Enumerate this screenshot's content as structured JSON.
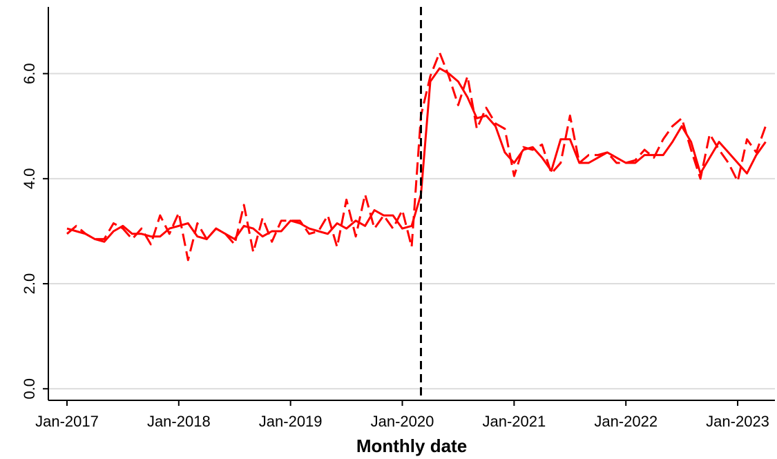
{
  "chart_data": {
    "type": "line",
    "x": [
      "Jan-2017",
      "Feb-2017",
      "Mar-2017",
      "Apr-2017",
      "May-2017",
      "Jun-2017",
      "Jul-2017",
      "Aug-2017",
      "Sep-2017",
      "Oct-2017",
      "Nov-2017",
      "Dec-2017",
      "Jan-2018",
      "Feb-2018",
      "Mar-2018",
      "Apr-2018",
      "May-2018",
      "Jun-2018",
      "Jul-2018",
      "Aug-2018",
      "Sep-2018",
      "Oct-2018",
      "Nov-2018",
      "Dec-2018",
      "Jan-2019",
      "Feb-2019",
      "Mar-2019",
      "Apr-2019",
      "May-2019",
      "Jun-2019",
      "Jul-2019",
      "Aug-2019",
      "Sep-2019",
      "Oct-2019",
      "Nov-2019",
      "Dec-2019",
      "Jan-2020",
      "Feb-2020",
      "Mar-2020",
      "Apr-2020",
      "May-2020",
      "Jun-2020",
      "Jul-2020",
      "Aug-2020",
      "Sep-2020",
      "Oct-2020",
      "Nov-2020",
      "Dec-2020",
      "Jan-2021",
      "Feb-2021",
      "Mar-2021",
      "Apr-2021",
      "May-2021",
      "Jun-2021",
      "Jul-2021",
      "Aug-2021",
      "Sep-2021",
      "Oct-2021",
      "Nov-2021",
      "Dec-2021",
      "Jan-2022",
      "Feb-2022",
      "Mar-2022",
      "Apr-2022",
      "May-2022",
      "Jun-2022",
      "Jul-2022",
      "Aug-2022",
      "Sep-2022",
      "Oct-2022",
      "Nov-2022",
      "Dec-2022",
      "Jan-2023",
      "Feb-2023",
      "Mar-2023",
      "Apr-2023"
    ],
    "series": [
      {
        "color": "#ff0000",
        "dash": false,
        "values": [
          3.05,
          3.0,
          2.95,
          2.85,
          2.8,
          3.0,
          3.1,
          2.95,
          2.95,
          2.9,
          2.9,
          3.05,
          3.1,
          3.15,
          2.9,
          2.85,
          3.05,
          2.95,
          2.85,
          3.1,
          3.05,
          2.9,
          3.0,
          3.0,
          3.2,
          3.15,
          3.05,
          3.0,
          2.95,
          3.15,
          3.05,
          3.2,
          3.1,
          3.4,
          3.3,
          3.3,
          3.05,
          3.1,
          3.7,
          5.85,
          6.1,
          6.0,
          5.85,
          5.55,
          5.15,
          5.2,
          5.0,
          4.5,
          4.3,
          4.55,
          4.6,
          4.4,
          4.15,
          4.75,
          4.75,
          4.3,
          4.3,
          4.4,
          4.5,
          4.4,
          4.3,
          4.3,
          4.45,
          4.45,
          4.45,
          4.7,
          5.0,
          4.7,
          4.1,
          4.4,
          4.7,
          4.5,
          4.3,
          4.1,
          4.45,
          4.7
        ]
      },
      {
        "color": "#ff0000",
        "dash": true,
        "values": [
          2.95,
          3.1,
          2.95,
          2.85,
          2.85,
          3.15,
          3.05,
          2.85,
          3.05,
          2.75,
          3.3,
          2.95,
          3.35,
          2.45,
          3.15,
          2.85,
          3.05,
          2.95,
          2.75,
          3.5,
          2.6,
          3.25,
          2.8,
          3.2,
          3.2,
          3.2,
          2.95,
          3.0,
          3.3,
          2.7,
          3.6,
          2.9,
          3.7,
          3.05,
          3.3,
          3.05,
          3.4,
          2.7,
          5.2,
          5.95,
          6.4,
          5.95,
          5.4,
          5.95,
          4.95,
          5.35,
          5.05,
          4.95,
          4.05,
          4.6,
          4.55,
          4.65,
          4.1,
          4.3,
          5.2,
          4.3,
          4.45,
          4.45,
          4.5,
          4.3,
          4.3,
          4.35,
          4.55,
          4.4,
          4.75,
          5.0,
          5.15,
          4.55,
          4.0,
          4.85,
          4.55,
          4.3,
          3.95,
          4.75,
          4.5,
          5.0
        ]
      }
    ],
    "vline": "Mar-2020",
    "xlabel": "Monthly date",
    "xlim": [
      "Nov-2016",
      "May-2023"
    ],
    "xticks": [
      "Jan-2017",
      "Jan-2018",
      "Jan-2019",
      "Jan-2020",
      "Jan-2021",
      "Jan-2022",
      "Jan-2023"
    ],
    "ylim": [
      -0.22,
      7.27
    ],
    "yticks": [
      {
        "value": 0,
        "label": "0.0"
      },
      {
        "value": 2,
        "label": "2.0"
      },
      {
        "value": 4,
        "label": "4.0"
      },
      {
        "value": 6,
        "label": "6.0"
      }
    ],
    "grid": true
  }
}
